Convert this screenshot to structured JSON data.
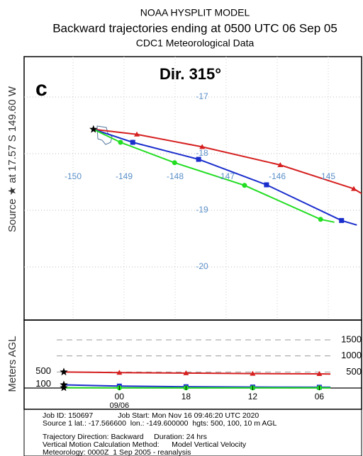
{
  "header": {
    "title": "NOAA HYSPLIT MODEL",
    "subtitle": "Backward trajectories ending at 0500 UTC 06 Sep 05",
    "data_source": "CDC1 Meteorological Data"
  },
  "map": {
    "panel_label": "c",
    "direction_label": "Dir. 315°",
    "source_label": "Source ★  at  17.57 S  149.60 W",
    "lon_ticks": [
      -150,
      -149,
      -148,
      -147,
      -146,
      {
        "value": -145,
        "label": "145"
      }
    ],
    "lat_ticks": [
      -17,
      -18,
      -19,
      -20
    ],
    "source": {
      "lon": -149.6,
      "lat": -17.57
    }
  },
  "trajectories": [
    {
      "color": "#d62020",
      "marker": "triangle",
      "hours": [
        0,
        5,
        11,
        17,
        23,
        24
      ],
      "lon": [
        -149.6,
        -148.75,
        -147.47,
        -145.94,
        -144.5,
        -144.3
      ],
      "lat": [
        -17.57,
        -17.66,
        -17.88,
        -18.2,
        -18.62,
        -18.73
      ],
      "heights": [
        500,
        480,
        465,
        450,
        440,
        435
      ]
    },
    {
      "color": "#1a2ecc",
      "marker": "square",
      "hours": [
        0,
        5,
        11,
        17,
        23,
        24
      ],
      "lon": [
        -149.6,
        -148.83,
        -147.54,
        -146.21,
        -144.74,
        -144.44
      ],
      "lat": [
        -17.57,
        -17.8,
        -18.1,
        -18.55,
        -19.18,
        -19.26
      ],
      "heights": [
        100,
        60,
        40,
        30,
        25,
        25
      ]
    },
    {
      "color": "#22dd22",
      "marker": "circle",
      "hours": [
        0,
        5,
        11,
        17,
        23,
        24
      ],
      "lon": [
        -149.6,
        -149.07,
        -148.01,
        -146.64,
        -145.15,
        -144.88
      ],
      "lat": [
        -17.57,
        -17.8,
        -18.16,
        -18.56,
        -19.16,
        -19.21
      ],
      "heights": [
        10,
        5,
        5,
        5,
        5,
        5
      ]
    }
  ],
  "vertical": {
    "y_label": "Meters AGL",
    "yticks": [
      1500,
      1000,
      500
    ],
    "time_ticks": [
      {
        "value": 5,
        "label": "00"
      },
      {
        "value": 11,
        "label": "18"
      },
      {
        "value": 17,
        "label": "12"
      },
      {
        "value": 23,
        "label": "06"
      }
    ],
    "date_label": "09/06"
  },
  "footer": {
    "lines": [
      "Job ID: 150697            Job Start: Mon Nov 16 09:46:20 UTC 2020",
      "Source 1 lat.: -17.566600  lon.: -149.600000  hgts: 500, 100, 10 m AGL",
      "Trajectory Direction: Backward     Duration: 24 hrs",
      "Vertical Motion Calculation Method:      Model Vertical Velocity",
      "Meteorology: 0000Z  1 Sep 2005 - reanalysis"
    ]
  }
}
